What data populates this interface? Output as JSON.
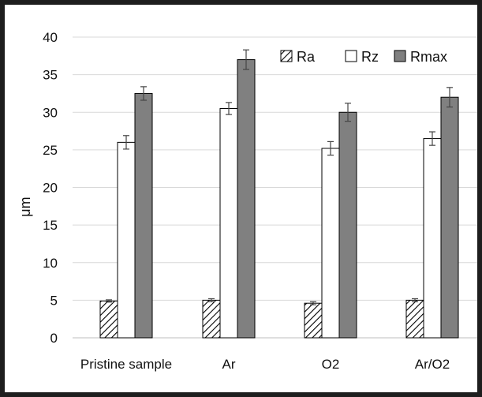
{
  "chart_data": {
    "type": "bar",
    "title": "",
    "xlabel": "",
    "ylabel": "μm",
    "ylim": [
      0,
      40
    ],
    "yticks": [
      "0",
      "5",
      "10",
      "15",
      "20",
      "25",
      "30",
      "35",
      "40"
    ],
    "grid": true,
    "legend_position": "top-right",
    "categories": [
      "Pristine sample",
      "Ar",
      "O2",
      "Ar/O2"
    ],
    "series": [
      {
        "name": "Ra",
        "pattern": "diagonal-hatch",
        "color": "#000000",
        "values": [
          4.9,
          5.0,
          4.6,
          5.0
        ],
        "errors": [
          0.15,
          0.2,
          0.2,
          0.2
        ]
      },
      {
        "name": "Rz",
        "pattern": "none",
        "color": "#ffffff",
        "values": [
          26.0,
          30.5,
          25.2,
          26.5
        ],
        "errors": [
          0.9,
          0.8,
          0.9,
          0.9
        ]
      },
      {
        "name": "Rmax",
        "pattern": "none",
        "color": "#808080",
        "values": [
          32.5,
          37.0,
          30.0,
          32.0
        ],
        "errors": [
          0.9,
          1.3,
          1.2,
          1.3
        ]
      }
    ]
  }
}
